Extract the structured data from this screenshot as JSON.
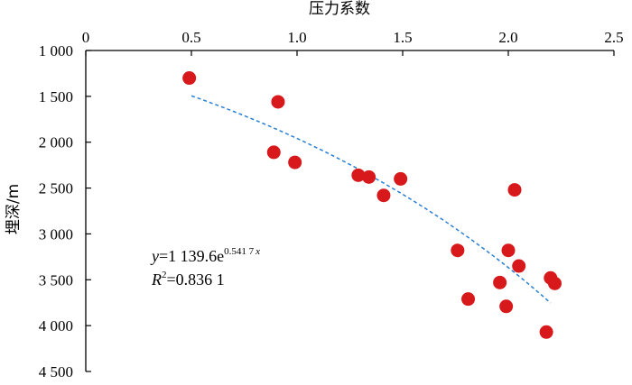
{
  "chart_data": {
    "type": "scatter",
    "title": "",
    "xlabel": "压力系数",
    "ylabel": "埋深/m",
    "x_axis_position": "top",
    "y_axis_inverted": true,
    "xlim": [
      0,
      2.5
    ],
    "ylim": [
      1000,
      4500
    ],
    "x_ticks": [
      0,
      0.5,
      1.0,
      1.5,
      2.0,
      2.5
    ],
    "x_tick_labels": [
      "0",
      "0.5",
      "1.0",
      "1.5",
      "2.0",
      "2.5"
    ],
    "y_ticks": [
      1000,
      1500,
      2000,
      2500,
      3000,
      3500,
      4000,
      4500
    ],
    "y_tick_labels": [
      "1 000",
      "1 500",
      "2 000",
      "2 500",
      "3 000",
      "3 500",
      "4 000",
      "4 500"
    ],
    "grid": false,
    "marker_color": "#d7191c",
    "trend_color": "#2a7fd4",
    "points": [
      {
        "x": 0.49,
        "y": 1300
      },
      {
        "x": 0.91,
        "y": 1560
      },
      {
        "x": 0.89,
        "y": 2110
      },
      {
        "x": 0.99,
        "y": 2220
      },
      {
        "x": 1.29,
        "y": 2360
      },
      {
        "x": 1.34,
        "y": 2380
      },
      {
        "x": 1.41,
        "y": 2580
      },
      {
        "x": 1.49,
        "y": 2400
      },
      {
        "x": 1.76,
        "y": 3180
      },
      {
        "x": 1.81,
        "y": 3710
      },
      {
        "x": 1.96,
        "y": 3530
      },
      {
        "x": 1.99,
        "y": 3790
      },
      {
        "x": 2.0,
        "y": 3180
      },
      {
        "x": 2.03,
        "y": 2520
      },
      {
        "x": 2.05,
        "y": 3350
      },
      {
        "x": 2.18,
        "y": 4070
      },
      {
        "x": 2.2,
        "y": 3480
      },
      {
        "x": 2.22,
        "y": 3540
      }
    ],
    "trendline": {
      "type": "exponential",
      "a": 1139.6,
      "b": 0.5417,
      "x_range": [
        0.5,
        2.2
      ],
      "style": "dashed"
    },
    "equation_text": {
      "y_var": "y",
      "eq": "=1 139.6e",
      "exp": "0.541 7",
      "x_var": "x",
      "r_var": "R",
      "r_sup": "2",
      "r_val": "=0.836 1"
    }
  }
}
